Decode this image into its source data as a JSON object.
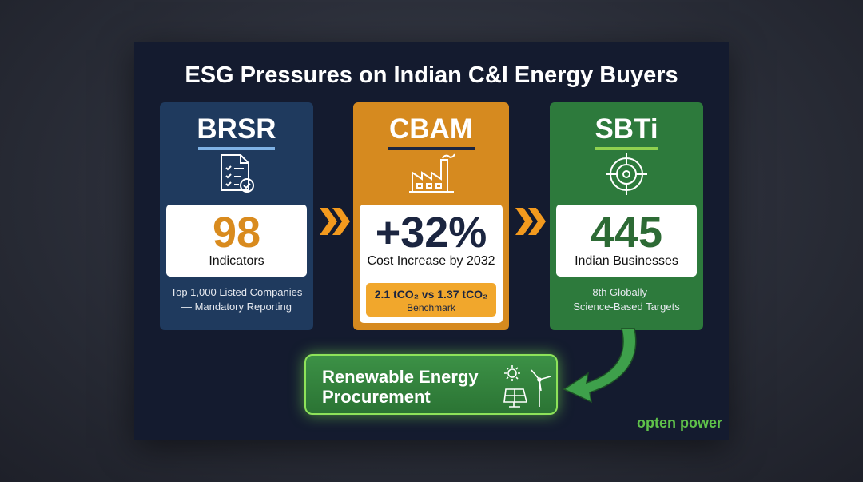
{
  "title": "ESG Pressures on Indian C&I Energy Buyers",
  "cards": [
    {
      "heading": "BRSR",
      "stat": "98",
      "stat_label": "Indicators",
      "note": [
        "Top 1,000 Listed Companies",
        "— Mandatory Reporting"
      ]
    },
    {
      "heading": "CBAM",
      "stat": "+32%",
      "stat_label": "Cost Increase by 2032",
      "benchmark": [
        "2.1 tCO₂ vs 1.37 tCO₂",
        "Benchmark"
      ]
    },
    {
      "heading": "SBTi",
      "stat": "445",
      "stat_label": "Indian Businesses",
      "note": [
        "8th Globally —",
        "Science-Based Targets"
      ]
    }
  ],
  "outcome": [
    "Renewable Energy",
    "Procurement"
  ],
  "logo": "opten power"
}
